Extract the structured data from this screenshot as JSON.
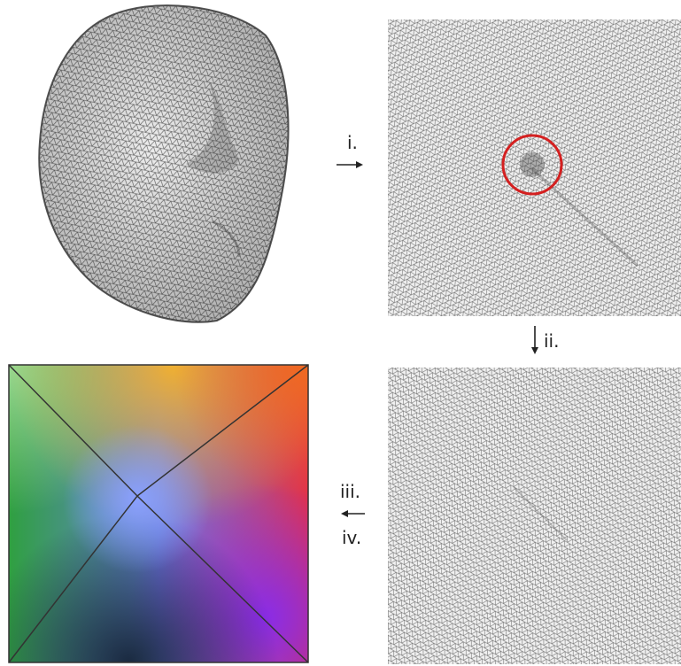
{
  "steps": [
    "i.",
    "ii.",
    "iii.",
    "iv."
  ]
}
